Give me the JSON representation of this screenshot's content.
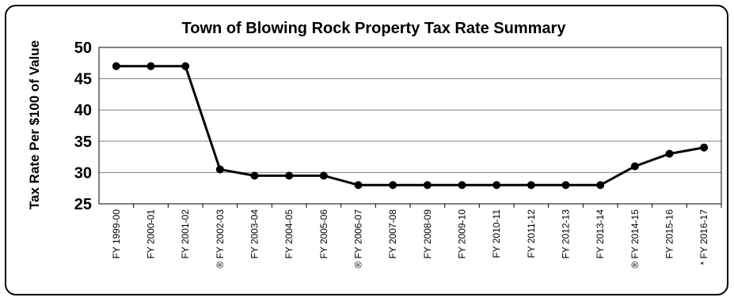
{
  "chart_data": {
    "type": "line",
    "title": "Town of Blowing Rock Property Tax Rate Summary",
    "xlabel": "",
    "ylabel": "Tax Rate Per $100 of Value",
    "ylim": [
      25,
      50
    ],
    "yticks": [
      "25",
      "30",
      "35",
      "40",
      "45",
      "50"
    ],
    "grid": true,
    "categories": [
      "FY 1999-00",
      "FY 2000-01",
      "FY 2001-02",
      "® FY 2002-03",
      "FY 2003-04",
      "FY 2004-05",
      "FY 2005-06",
      "® FY 2006-07",
      "FY 2007-08",
      "FY 2008-09",
      "FY 2009-10",
      "FY 2010-11",
      "FY 2011-12",
      "FY 2012-13",
      "FY 2013-14",
      "® FY 2014-15",
      "FY 2015-16",
      "* FY 2016-17"
    ],
    "values": [
      47,
      47,
      47,
      30.5,
      29.5,
      29.5,
      29.5,
      28,
      28,
      28,
      28,
      28,
      28,
      28,
      28,
      31,
      33,
      34
    ],
    "colors": {
      "line": "#000000",
      "grid": "#808080",
      "axis": "#000000"
    }
  }
}
